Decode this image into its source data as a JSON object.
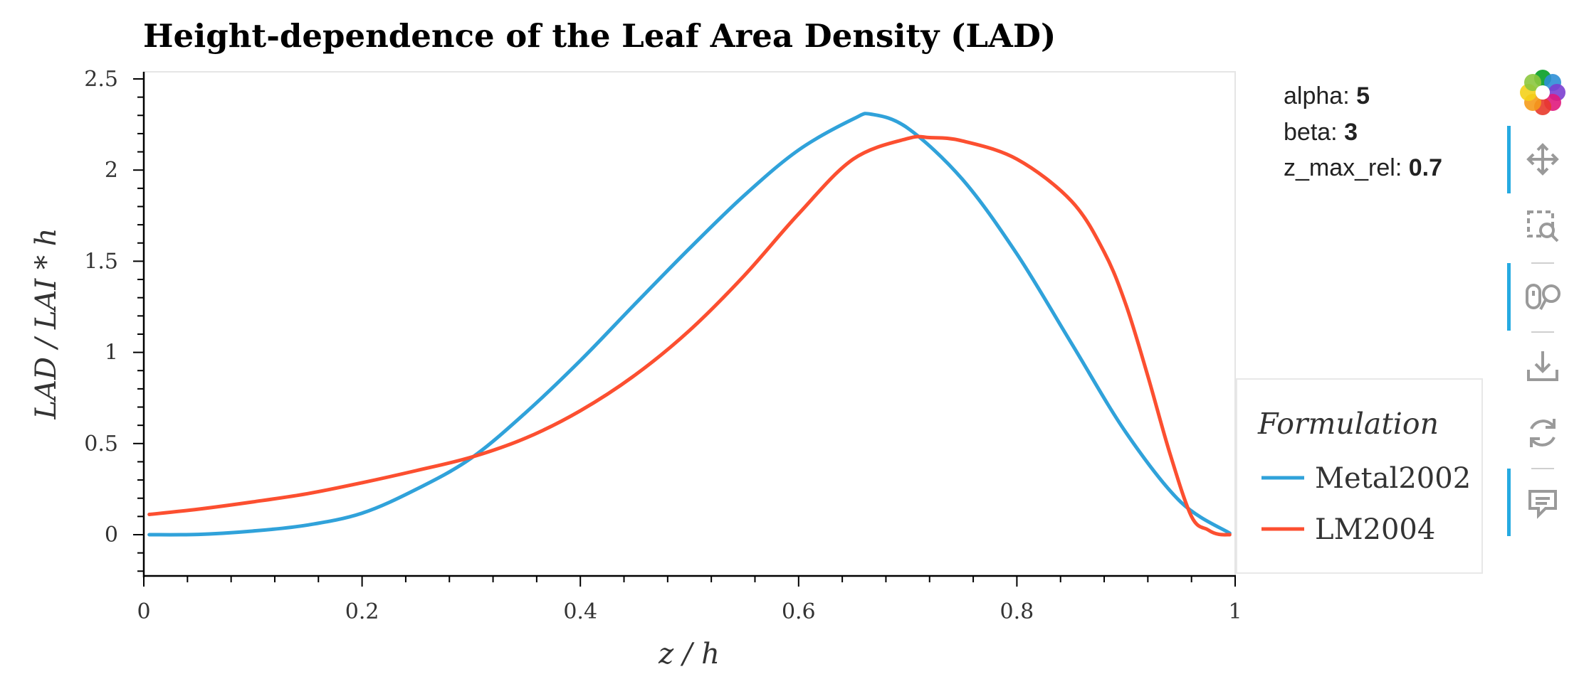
{
  "chart_data": {
    "type": "line",
    "title": "Height-dependence of the Leaf Area Density (LAD)",
    "xlabel": "z / h",
    "ylabel": "LAD / LAI * h",
    "xlim": [
      0,
      1
    ],
    "ylim": [
      -0.22,
      2.52
    ],
    "x_ticks": [
      0,
      0.2,
      0.4,
      0.6,
      0.8,
      1
    ],
    "x_tick_labels": [
      "0",
      "0.2",
      "0.4",
      "0.6",
      "0.8",
      "1"
    ],
    "y_ticks": [
      0,
      0.5,
      1,
      1.5,
      2,
      2.5
    ],
    "y_tick_labels": [
      "0",
      "0.5",
      "1",
      "1.5",
      "2",
      "2.5"
    ],
    "legend": {
      "title": "Formulation",
      "placement": "right"
    },
    "series": [
      {
        "name": "Metal2002",
        "color": "#30a2da",
        "x": [
          0.005,
          0.05,
          0.1,
          0.15,
          0.2,
          0.25,
          0.3,
          0.35,
          0.4,
          0.45,
          0.5,
          0.55,
          0.6,
          0.65,
          0.667,
          0.7,
          0.75,
          0.8,
          0.85,
          0.9,
          0.95,
          0.995
        ],
        "y": [
          0,
          0.0016,
          0.02,
          0.053,
          0.118,
          0.25,
          0.42,
          0.67,
          0.955,
          1.265,
          1.57,
          1.86,
          2.11,
          2.28,
          2.306,
          2.23,
          1.95,
          1.54,
          1.05,
          0.56,
          0.18,
          0.008
        ]
      },
      {
        "name": "LM2004",
        "color": "#fc4f30",
        "x": [
          0.005,
          0.05,
          0.1,
          0.15,
          0.2,
          0.25,
          0.3,
          0.35,
          0.4,
          0.45,
          0.5,
          0.55,
          0.6,
          0.65,
          0.7,
          0.72,
          0.75,
          0.8,
          0.85,
          0.88,
          0.9,
          0.92,
          0.94,
          0.96,
          0.975,
          0.985,
          0.995
        ],
        "y": [
          0.111,
          0.14,
          0.18,
          0.225,
          0.285,
          0.352,
          0.425,
          0.53,
          0.68,
          0.875,
          1.12,
          1.42,
          1.76,
          2.06,
          2.173,
          2.178,
          2.16,
          2.06,
          1.83,
          1.55,
          1.26,
          0.87,
          0.45,
          0.1,
          0.027,
          0.002,
          0
        ]
      }
    ],
    "grid": false
  },
  "params": [
    {
      "label": "alpha:",
      "value": "5"
    },
    {
      "label": "beta:",
      "value": "3"
    },
    {
      "label": "z_max_rel:",
      "value": "0.7"
    }
  ],
  "toolbar": {
    "tools": [
      "logo-icon",
      "pan-icon",
      "box-zoom-icon",
      "wheel-zoom-icon",
      "save-icon",
      "reset-icon",
      "hover-icon"
    ],
    "active_color": "#26aae1"
  }
}
